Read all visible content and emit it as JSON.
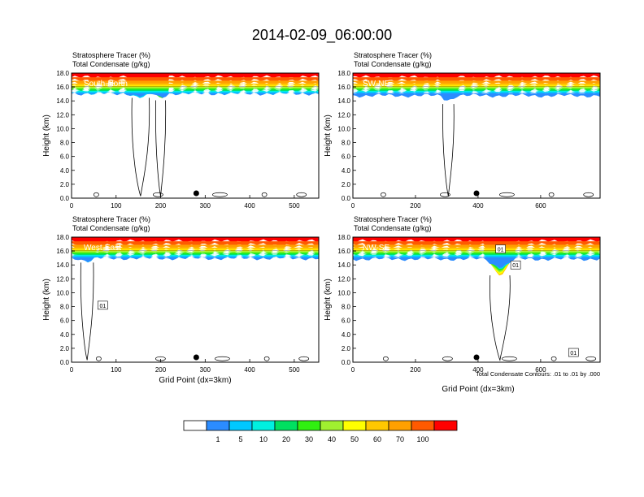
{
  "title": "2014-02-09_06:00:00",
  "colors": {
    "scale": [
      "#ffffff",
      "#2b8cff",
      "#00c8ff",
      "#00f0e0",
      "#00e060",
      "#30f010",
      "#a0f030",
      "#ffff00",
      "#ffc800",
      "#ffa000",
      "#ff5a00",
      "#ff0000"
    ],
    "contour": "#000000",
    "white_label": "#ffffff"
  },
  "contour_note": "Total Condensate Contours: .01 to .01 by .000",
  "colorbar": {
    "labels": [
      "1",
      "5",
      "10",
      "20",
      "30",
      "40",
      "50",
      "60",
      "70",
      "100"
    ]
  },
  "chart_data": [
    {
      "type": "heatmap",
      "left_label_1": "Stratosphere Tracer   (%)",
      "left_label_2": "Total Condensate   (g/kg)",
      "inset_label": "South-North",
      "ylabel": "Height (km)",
      "xlabel": "",
      "xlim": [
        0,
        555
      ],
      "ylim": [
        0,
        18
      ],
      "xticks": [
        "0",
        "100",
        "200",
        "300",
        "400",
        "500"
      ],
      "xtick_values": [
        0,
        100,
        200,
        300,
        400,
        500
      ],
      "yticks": [
        "0.0",
        "2.0",
        "4.0",
        "6.0",
        "8.0",
        "10.0",
        "12.0",
        "14.0",
        "16.0",
        "18.0"
      ],
      "tropopause_km": 15.4,
      "dips": [
        {
          "x": 155,
          "width": 55,
          "depth_km": 1.6
        },
        {
          "x": 200,
          "width": 30,
          "depth_km": 2.2
        }
      ],
      "marker": {
        "x": 280,
        "y_km": 0.7
      },
      "contour_labels": []
    },
    {
      "type": "heatmap",
      "left_label_1": "Stratosphere Tracer   (%)",
      "left_label_2": "Total Condensate   (g/kg)",
      "inset_label": "SW-NE",
      "ylabel": "Height (km)",
      "xlabel": "",
      "xlim": [
        0,
        790
      ],
      "ylim": [
        0,
        18
      ],
      "xticks": [
        "0",
        "200",
        "400",
        "600"
      ],
      "xtick_values": [
        0,
        200,
        400,
        600
      ],
      "yticks": [
        "0.0",
        "2.0",
        "4.0",
        "6.0",
        "8.0",
        "10.0",
        "12.0",
        "14.0",
        "16.0",
        "18.0"
      ],
      "tropopause_km": 15.1,
      "dips": [
        {
          "x": 305,
          "width": 50,
          "depth_km": 2.6
        }
      ],
      "marker": {
        "x": 395,
        "y_km": 0.7
      },
      "contour_labels": []
    },
    {
      "type": "heatmap",
      "left_label_1": "Stratosphere Tracer   (%)",
      "left_label_2": "Total Condensate   (g/kg)",
      "inset_label": "West-East",
      "ylabel": "Height (km)",
      "xlabel": "Grid Point (dx=3km)",
      "xlim": [
        0,
        555
      ],
      "ylim": [
        0,
        18
      ],
      "xticks": [
        "0",
        "100",
        "200",
        "300",
        "400",
        "500"
      ],
      "xtick_values": [
        0,
        100,
        200,
        300,
        400,
        500
      ],
      "yticks": [
        "0.0",
        "2.0",
        "4.0",
        "6.0",
        "8.0",
        "10.0",
        "12.0",
        "14.0",
        "16.0",
        "18.0"
      ],
      "tropopause_km": 15.3,
      "dips": [
        {
          "x": 35,
          "width": 40,
          "depth_km": 1.6
        }
      ],
      "marker": {
        "x": 280,
        "y_km": 0.7
      },
      "contour_labels": [
        {
          "text": "01",
          "x": 70,
          "y_km": 8.2
        }
      ]
    },
    {
      "type": "heatmap",
      "left_label_1": "Stratosphere Tracer   (%)",
      "left_label_2": "Total Condensate   (g/kg)",
      "inset_label": "NW-SE",
      "ylabel": "Height (km)",
      "xlabel": "Grid Point (dx=3km)",
      "xlim": [
        0,
        790
      ],
      "ylim": [
        0,
        18
      ],
      "xticks": [
        "0",
        "200",
        "400",
        "600"
      ],
      "xtick_values": [
        0,
        200,
        400,
        600
      ],
      "yticks": [
        "0.0",
        "2.0",
        "4.0",
        "6.0",
        "8.0",
        "10.0",
        "12.0",
        "14.0",
        "16.0",
        "18.0"
      ],
      "tropopause_km": 15.2,
      "dips": [
        {
          "x": 470,
          "width": 90,
          "depth_km": 4.5
        }
      ],
      "marker": {
        "x": 395,
        "y_km": 0.7
      },
      "contour_labels": [
        {
          "text": "01",
          "x": 472,
          "y_km": 16.3
        },
        {
          "text": "01",
          "x": 520,
          "y_km": 14.0
        },
        {
          "text": "01",
          "x": 705,
          "y_km": 1.4
        }
      ]
    }
  ]
}
